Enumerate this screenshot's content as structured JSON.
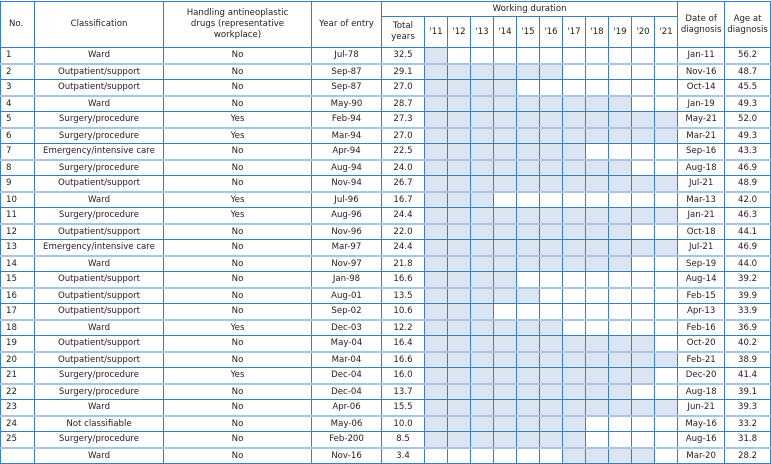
{
  "headers": {
    "no": "No.",
    "classification": "Classification",
    "handling": "Handling antineoplastic drugs (representative workplace)",
    "year_of_entry": "Year of entry",
    "working_duration": "Working duration",
    "total_years": "Total years",
    "years": [
      "'11",
      "'12",
      "'13",
      "'14",
      "'15",
      "'16",
      "'17",
      "'18",
      "'19",
      "'20",
      "'21"
    ],
    "date_of_diagnosis": "Date of diagnosis",
    "age_at_diagnosis": "Age at diagnosis"
  },
  "shade_color": "#dbe5f1",
  "rows": [
    {
      "no": "1",
      "classification": "Ward",
      "handling": "No",
      "entry": "Jul-78",
      "total": "32.5",
      "worked": [
        "'11",
        "'11"
      ],
      "diagnosis": "Jan-11",
      "age": "56.2"
    },
    {
      "no": "2",
      "classification": "Outpatient/support",
      "handling": "No",
      "entry": "Sep-87",
      "total": "29.1",
      "worked": [
        "'11",
        "'16"
      ],
      "diagnosis": "Nov-16",
      "age": "48.7"
    },
    {
      "no": "3",
      "classification": "Outpatient/support",
      "handling": "No",
      "entry": "Sep-87",
      "total": "27.0",
      "worked": [
        "'11",
        "'14"
      ],
      "diagnosis": "Oct-14",
      "age": "45.5"
    },
    {
      "no": "4",
      "classification": "Ward",
      "handling": "No",
      "entry": "May-90",
      "total": "28.7",
      "worked": [
        "'11",
        "'19"
      ],
      "diagnosis": "Jan-19",
      "age": "49.3"
    },
    {
      "no": "5",
      "classification": "Surgery/procedure",
      "handling": "Yes",
      "entry": "Feb-94",
      "total": "27.3",
      "worked": [
        "'11",
        "'21"
      ],
      "diagnosis": "May-21",
      "age": "52.0"
    },
    {
      "no": "6",
      "classification": "Surgery/procedure",
      "handling": "Yes",
      "entry": "Mar-94",
      "total": "27.0",
      "worked": [
        "'11",
        "'21"
      ],
      "diagnosis": "Mar-21",
      "age": "49.3"
    },
    {
      "no": "7",
      "classification": "Emergency/intensive care",
      "handling": "No",
      "entry": "Apr-94",
      "total": "22.5",
      "worked": [
        "'11",
        "'17"
      ],
      "diagnosis": "Sep-16",
      "age": "43.3"
    },
    {
      "no": "8",
      "classification": "Surgery/procedure",
      "handling": "No",
      "entry": "Aug-94",
      "total": "24.0",
      "worked": [
        "'11",
        "'19"
      ],
      "diagnosis": "Aug-18",
      "age": "46.9"
    },
    {
      "no": "9",
      "classification": "Outpatient/support",
      "handling": "No",
      "entry": "Nov-94",
      "total": "26.7",
      "worked": [
        "'11",
        "'21"
      ],
      "diagnosis": "Jul-21",
      "age": "48.9"
    },
    {
      "no": "10",
      "classification": "Ward",
      "handling": "Yes",
      "entry": "Jul-96",
      "total": "16.7",
      "worked": [
        "'11",
        "'13"
      ],
      "diagnosis": "Mar-13",
      "age": "42.0"
    },
    {
      "no": "11",
      "classification": "Surgery/procedure",
      "handling": "Yes",
      "entry": "Aug-96",
      "total": "24.4",
      "worked": [
        "'11",
        "'21"
      ],
      "diagnosis": "Jan-21",
      "age": "46.3"
    },
    {
      "no": "12",
      "classification": "Outpatient/support",
      "handling": "No",
      "entry": "Nov-96",
      "total": "22.0",
      "worked": [
        "'11",
        "'19"
      ],
      "diagnosis": "Oct-18",
      "age": "44.1"
    },
    {
      "no": "13",
      "classification": "Emergency/intensive care",
      "handling": "No",
      "entry": "Mar-97",
      "total": "24.4",
      "worked": [
        "'11",
        "'21"
      ],
      "diagnosis": "Jul-21",
      "age": "46.9"
    },
    {
      "no": "14",
      "classification": "Ward",
      "handling": "No",
      "entry": "Nov-97",
      "total": "21.8",
      "worked": [
        "'11",
        "'19"
      ],
      "diagnosis": "Sep-19",
      "age": "44.0"
    },
    {
      "no": "15",
      "classification": "Outpatient/support",
      "handling": "No",
      "entry": "Jan-98",
      "total": "16.6",
      "worked": [
        "'11",
        "'14"
      ],
      "diagnosis": "Aug-14",
      "age": "39.2"
    },
    {
      "no": "16",
      "classification": "Outpatient/support",
      "handling": "No",
      "entry": "Aug-01",
      "total": "13.5",
      "worked": [
        "'11",
        "'15"
      ],
      "diagnosis": "Feb-15",
      "age": "39.9"
    },
    {
      "no": "17",
      "classification": "Outpatient/support",
      "handling": "No",
      "entry": "Sep-02",
      "total": "10.6",
      "worked": [
        "'11",
        "'13"
      ],
      "diagnosis": "Apr-13",
      "age": "33.9"
    },
    {
      "no": "18",
      "classification": "Ward",
      "handling": "Yes",
      "entry": "Dec-03",
      "total": "12.2",
      "worked": [
        "'11",
        "'16"
      ],
      "diagnosis": "Feb-16",
      "age": "36.9"
    },
    {
      "no": "19",
      "classification": "Outpatient/support",
      "handling": "No",
      "entry": "May-04",
      "total": "16.4",
      "worked": [
        "'11",
        "'20"
      ],
      "diagnosis": "Oct-20",
      "age": "40.2"
    },
    {
      "no": "20",
      "classification": "Outpatient/support",
      "handling": "No",
      "entry": "Mar-04",
      "total": "16.6",
      "worked": [
        "'11",
        "'21"
      ],
      "diagnosis": "Feb-21",
      "age": "38.9"
    },
    {
      "no": "21",
      "classification": "Surgery/procedure",
      "handling": "Yes",
      "entry": "Dec-04",
      "total": "16.0",
      "worked": [
        "'11",
        "'20"
      ],
      "diagnosis": "Dec-20",
      "age": "41.4"
    },
    {
      "no": "22",
      "classification": "Surgery/procedure",
      "handling": "No",
      "entry": "Dec-04",
      "total": "13.7",
      "worked": [
        "'11",
        "'19"
      ],
      "diagnosis": "Aug-18",
      "age": "39.1"
    },
    {
      "no": "23",
      "classification": "Ward",
      "handling": "No",
      "entry": "Apr-06",
      "total": "15.5",
      "worked": [
        "'11",
        "'21"
      ],
      "diagnosis": "Jun-21",
      "age": "39.3"
    },
    {
      "no": "24",
      "classification": "Not classifiable",
      "handling": "No",
      "entry": "May-06",
      "total": "10.0",
      "worked": [
        "'11",
        "'17"
      ],
      "diagnosis": "May-16",
      "age": "33.2"
    },
    {
      "no": "25",
      "classification": "Surgery/procedure",
      "handling": "No",
      "entry": "Feb-200",
      "total": "8.5",
      "worked": [
        "'11",
        "'17"
      ],
      "diagnosis": "Aug-16",
      "age": "31.8"
    },
    {
      "no": "",
      "classification": "Ward",
      "handling": "No",
      "entry": "Nov-16",
      "total": "3.4",
      "worked": [
        "'17",
        "'20"
      ],
      "diagnosis": "Mar-20",
      "age": "28.2"
    }
  ]
}
